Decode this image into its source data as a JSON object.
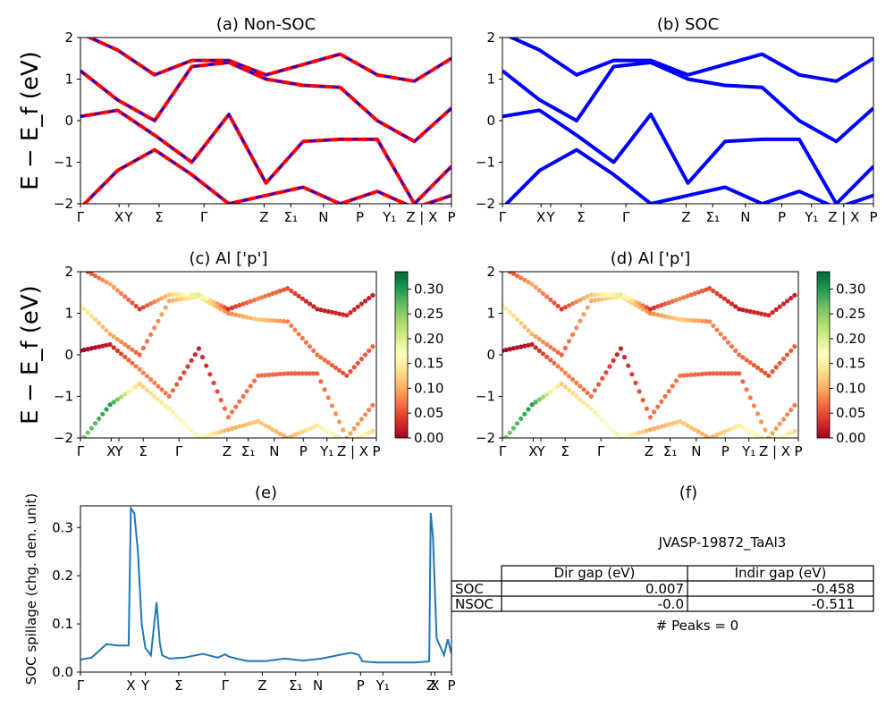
{
  "figure_name": "JVASP-19872_TaAl3",
  "colors": {
    "nonsoc_line": "#ff0000",
    "nonsoc_dash": "#0000ff",
    "soc_line": "#0000ff",
    "spillage_line": "#1f77b4",
    "colormap": [
      "#a50026",
      "#d73027",
      "#f46d43",
      "#fdae61",
      "#fee08b",
      "#ffffbf",
      "#d9ef8b",
      "#a6d96a",
      "#66bd63",
      "#1a9850",
      "#006837"
    ]
  },
  "chart_data": [
    {
      "id": "a",
      "type": "line",
      "title": "(a) Non-SOC",
      "ylabel": "E − E_f (eV)",
      "ylim": [
        -2,
        2
      ],
      "yticks": [
        "2",
        "1",
        "0",
        "−1",
        "−2"
      ],
      "xticks": [
        "Γ",
        "X",
        "Y",
        "Σ",
        "Γ",
        "Z",
        "Σ₁",
        "N",
        "P",
        "Y₁",
        "Z | X",
        "P"
      ],
      "style": "red line with blue dashes",
      "x": [
        0,
        0.1,
        0.2,
        0.3,
        0.4,
        0.5,
        0.6,
        0.7,
        0.8,
        0.9,
        1.0
      ],
      "series": [
        {
          "values": [
            -2.1,
            -1.2,
            -0.7,
            -1.3,
            -2.0,
            -1.8,
            -1.6,
            -2.0,
            -1.7,
            -2.1,
            -1.8
          ]
        },
        {
          "values": [
            0.1,
            0.25,
            -0.35,
            -1.0,
            0.15,
            -1.5,
            -0.5,
            -0.45,
            -0.45,
            -2.0,
            -1.1
          ]
        },
        {
          "values": [
            1.2,
            0.5,
            0.0,
            1.3,
            1.4,
            1.0,
            0.85,
            0.8,
            0.0,
            -0.5,
            0.3
          ]
        },
        {
          "values": [
            2.1,
            1.7,
            1.1,
            1.45,
            1.45,
            1.1,
            1.35,
            1.6,
            1.1,
            0.95,
            1.5
          ]
        }
      ]
    },
    {
      "id": "b",
      "type": "line",
      "title": "(b) SOC",
      "ylim": [
        -2,
        2
      ],
      "yticks": [
        "2",
        "1",
        "0",
        "−1",
        "−2"
      ],
      "xticks": [
        "Γ",
        "X",
        "Y",
        "Σ",
        "Γ",
        "Z",
        "Σ₁",
        "N",
        "P",
        "Y₁",
        "Z | X",
        "P"
      ],
      "style": "solid blue",
      "x": [
        0,
        0.1,
        0.2,
        0.3,
        0.4,
        0.5,
        0.6,
        0.7,
        0.8,
        0.9,
        1.0
      ],
      "series": [
        {
          "values": [
            -2.1,
            -1.2,
            -0.7,
            -1.3,
            -2.0,
            -1.8,
            -1.6,
            -2.0,
            -1.7,
            -2.1,
            -1.8
          ]
        },
        {
          "values": [
            0.1,
            0.25,
            -0.35,
            -1.0,
            0.15,
            -1.5,
            -0.5,
            -0.45,
            -0.45,
            -2.0,
            -1.1
          ]
        },
        {
          "values": [
            1.2,
            0.5,
            0.0,
            1.3,
            1.4,
            1.0,
            0.85,
            0.8,
            0.0,
            -0.5,
            0.3
          ]
        },
        {
          "values": [
            2.1,
            1.7,
            1.1,
            1.45,
            1.45,
            1.1,
            1.35,
            1.6,
            1.1,
            0.95,
            1.5
          ]
        }
      ]
    },
    {
      "id": "c",
      "type": "scatter",
      "title": "(c)  Al ['p']",
      "ylabel": "E − E_f (eV)",
      "ylim": [
        -2,
        2
      ],
      "yticks": [
        "2",
        "1",
        "0",
        "−1",
        "−2"
      ],
      "xticks": [
        "Γ",
        "X",
        "Y",
        "Σ",
        "Γ",
        "Z",
        "Σ₁",
        "N",
        "P",
        "Y₁",
        "Z | X",
        "P"
      ],
      "colorbar": {
        "min": 0.0,
        "max": 0.335,
        "ticks": [
          "0.30",
          "0.25",
          "0.20",
          "0.15",
          "0.10",
          "0.05",
          "0.00"
        ]
      },
      "x": [
        0,
        0.1,
        0.2,
        0.3,
        0.4,
        0.5,
        0.6,
        0.7,
        0.8,
        0.9,
        1.0
      ],
      "series": [
        {
          "values": [
            -2.1,
            -1.2,
            -0.7,
            -1.3,
            -2.0,
            -1.8,
            -1.6,
            -2.0,
            -1.7,
            -2.1,
            -1.8
          ],
          "weight": [
            0.25,
            0.3,
            0.12,
            0.15,
            0.18,
            0.1,
            0.12,
            0.1,
            0.15,
            0.2,
            0.12
          ]
        },
        {
          "values": [
            0.1,
            0.25,
            -0.35,
            -1.0,
            0.15,
            -1.5,
            -0.5,
            -0.45,
            -0.45,
            -2.0,
            -1.1
          ],
          "weight": [
            0.0,
            0.02,
            0.08,
            0.07,
            0.02,
            0.07,
            0.07,
            0.06,
            0.06,
            0.1,
            0.07
          ]
        },
        {
          "values": [
            1.2,
            0.5,
            0.0,
            1.3,
            1.4,
            1.0,
            0.85,
            0.8,
            0.0,
            -0.5,
            0.3
          ],
          "weight": [
            0.15,
            0.1,
            0.06,
            0.1,
            0.15,
            0.08,
            0.12,
            0.08,
            0.07,
            0.05,
            0.06
          ]
        },
        {
          "values": [
            2.1,
            1.7,
            1.1,
            1.45,
            1.45,
            1.1,
            1.35,
            1.6,
            1.1,
            0.95,
            1.5
          ],
          "weight": [
            0.03,
            0.1,
            0.04,
            0.12,
            0.2,
            0.03,
            0.08,
            0.05,
            0.02,
            0.03,
            0.02
          ]
        }
      ]
    },
    {
      "id": "d",
      "type": "scatter",
      "title": "(d) Al ['p']",
      "ylim": [
        -2,
        2
      ],
      "yticks": [
        "2",
        "1",
        "0",
        "−1",
        "−2"
      ],
      "xticks": [
        "Γ",
        "X",
        "Y",
        "Σ",
        "Γ",
        "Z",
        "Σ₁",
        "N",
        "P",
        "Y₁",
        "Z | X",
        "P"
      ],
      "colorbar": {
        "min": 0.0,
        "max": 0.335,
        "ticks": [
          "0.30",
          "0.25",
          "0.20",
          "0.15",
          "0.10",
          "0.05",
          "0.00"
        ]
      },
      "x": [
        0,
        0.1,
        0.2,
        0.3,
        0.4,
        0.5,
        0.6,
        0.7,
        0.8,
        0.9,
        1.0
      ],
      "series": [
        {
          "values": [
            -2.1,
            -1.2,
            -0.7,
            -1.3,
            -2.0,
            -1.8,
            -1.6,
            -2.0,
            -1.7,
            -2.1,
            -1.8
          ],
          "weight": [
            0.25,
            0.3,
            0.12,
            0.15,
            0.18,
            0.1,
            0.12,
            0.1,
            0.15,
            0.2,
            0.12
          ]
        },
        {
          "values": [
            0.1,
            0.25,
            -0.35,
            -1.0,
            0.15,
            -1.5,
            -0.5,
            -0.45,
            -0.45,
            -2.0,
            -1.1
          ],
          "weight": [
            0.0,
            0.02,
            0.08,
            0.07,
            0.02,
            0.07,
            0.07,
            0.06,
            0.06,
            0.1,
            0.07
          ]
        },
        {
          "values": [
            1.2,
            0.5,
            0.0,
            1.3,
            1.4,
            1.0,
            0.85,
            0.8,
            0.0,
            -0.5,
            0.3
          ],
          "weight": [
            0.15,
            0.1,
            0.06,
            0.1,
            0.15,
            0.08,
            0.12,
            0.08,
            0.07,
            0.05,
            0.06
          ]
        },
        {
          "values": [
            2.1,
            1.7,
            1.1,
            1.45,
            1.45,
            1.1,
            1.35,
            1.6,
            1.1,
            0.95,
            1.5
          ],
          "weight": [
            0.03,
            0.1,
            0.04,
            0.12,
            0.2,
            0.03,
            0.08,
            0.05,
            0.02,
            0.03,
            0.02
          ]
        }
      ]
    },
    {
      "id": "e",
      "type": "line",
      "title": "(e)",
      "ylabel": "SOC spillage (chg. den. unit)",
      "ylim": [
        0,
        0.345
      ],
      "yticks": [
        "0.3",
        "0.2",
        "0.1",
        "0.0"
      ],
      "xticks": [
        "Γ",
        "X",
        "Y",
        "Σ",
        "Γ",
        "Z",
        "Σ₁",
        "N",
        "P",
        "Y₁",
        "Z",
        "X",
        "P"
      ],
      "x": [
        0,
        0.03,
        0.07,
        0.1,
        0.13,
        0.136,
        0.145,
        0.155,
        0.165,
        0.175,
        0.19,
        0.205,
        0.214,
        0.22,
        0.24,
        0.28,
        0.33,
        0.37,
        0.39,
        0.4,
        0.42,
        0.45,
        0.5,
        0.55,
        0.6,
        0.65,
        0.7,
        0.73,
        0.75,
        0.76,
        0.8,
        0.85,
        0.9,
        0.94,
        0.944,
        0.95,
        0.96,
        0.98,
        0.99,
        1.0
      ],
      "values": [
        0.026,
        0.03,
        0.058,
        0.055,
        0.055,
        0.34,
        0.33,
        0.25,
        0.1,
        0.05,
        0.035,
        0.145,
        0.06,
        0.035,
        0.028,
        0.03,
        0.038,
        0.03,
        0.037,
        0.032,
        0.028,
        0.023,
        0.023,
        0.028,
        0.024,
        0.028,
        0.036,
        0.04,
        0.036,
        0.022,
        0.02,
        0.02,
        0.02,
        0.022,
        0.33,
        0.28,
        0.07,
        0.035,
        0.068,
        0.038
      ]
    }
  ],
  "panel_f": {
    "title": "(f)",
    "name": "JVASP-19872_TaAl3",
    "col_headers": [
      "Dir gap (eV)",
      "Indir gap (eV)"
    ],
    "rows": [
      {
        "label": "SOC",
        "dir": "0.007",
        "indir": "-0.458"
      },
      {
        "label": "NSOC",
        "dir": "-0.0",
        "indir": "-0.511"
      }
    ],
    "peaks": "# Peaks = 0"
  }
}
